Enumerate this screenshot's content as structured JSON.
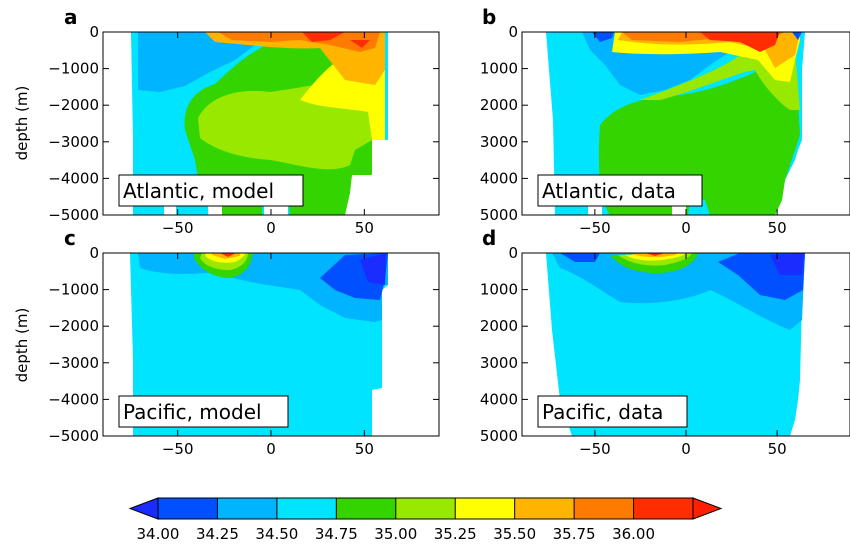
{
  "chart_data": {
    "type": "filled-contour",
    "variable": "salinity",
    "xticks": [
      "−50",
      "0",
      "50"
    ],
    "xlim": [
      -90,
      90
    ],
    "ylabel": "depth (m)",
    "ylim": [
      -5000,
      0
    ],
    "colorbar": {
      "ticks": [
        "34.00",
        "34.25",
        "34.50",
        "34.75",
        "35.00",
        "35.25",
        "35.50",
        "35.75",
        "36.00"
      ],
      "levels": [
        34.0,
        34.25,
        34.5,
        34.75,
        35.0,
        35.25,
        35.5,
        35.75,
        36.0
      ],
      "colors": [
        "#0050ff",
        "#00b4ff",
        "#00e4ff",
        "#33d400",
        "#99e800",
        "#ffff00",
        "#ffb400",
        "#ff7a00",
        "#ff2d00"
      ],
      "extend_low_color": "#1a2cff",
      "extend_high_color": "#ff2000"
    },
    "panels": [
      {
        "id": "a",
        "label": "a",
        "annotation": "Atlantic, model",
        "yticks": [
          "0",
          "−1000",
          "−2000",
          "−3000",
          "−4000",
          "−5000"
        ]
      },
      {
        "id": "b",
        "label": "b",
        "annotation": "Atlantic, data",
        "yticks": [
          "0",
          "1000",
          "2000",
          "3000",
          "4000",
          "5000"
        ]
      },
      {
        "id": "c",
        "label": "c",
        "annotation": "Pacific, model",
        "yticks": [
          "0",
          "−1000",
          "−2000",
          "−3000",
          "−4000",
          "−5000"
        ]
      },
      {
        "id": "d",
        "label": "d",
        "annotation": "Pacific, data",
        "yticks": [
          "0",
          "1000",
          "2000",
          "3000",
          "4000",
          "5000"
        ]
      }
    ]
  }
}
